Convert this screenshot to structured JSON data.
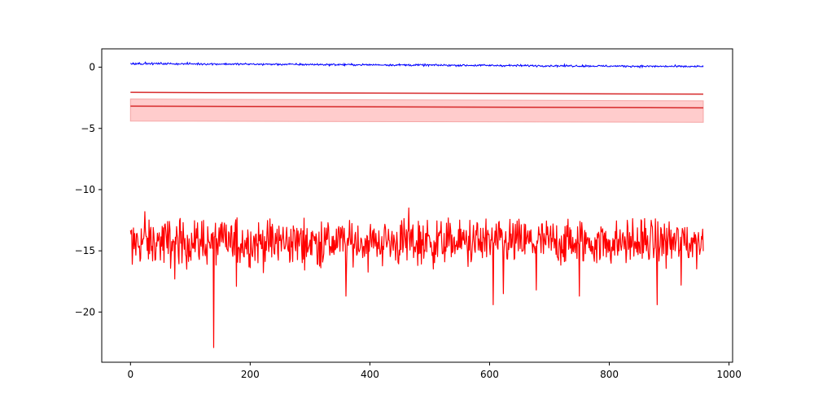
{
  "chart_data": {
    "type": "line",
    "title": "",
    "xlabel": "",
    "ylabel": "",
    "xlim": [
      -48,
      1006
    ],
    "ylim": [
      -24.1,
      1.5
    ],
    "grid": false,
    "legend": "none",
    "x_ticks": [
      0,
      200,
      400,
      600,
      800,
      1000
    ],
    "x_tick_labels": [
      "0",
      "200",
      "400",
      "600",
      "800",
      "1000"
    ],
    "y_ticks": [
      0,
      -5,
      -10,
      -15,
      -20
    ],
    "y_tick_labels": [
      "0",
      "−5",
      "−10",
      "−15",
      "−20"
    ],
    "n_points": 958,
    "colors": {
      "blue": "#0000ff",
      "red": "#ff0000",
      "dark_red": "#d62728",
      "band_fill": "#ffcccc"
    },
    "series": [
      {
        "key": "blue_line",
        "color": "#0000ff",
        "trend": {
          "x": [
            0,
            957
          ],
          "y": [
            0.3,
            0.05
          ]
        },
        "noise_amplitude": 0.08
      },
      {
        "key": "upper_line",
        "color": "#d62728",
        "x": [
          0,
          957
        ],
        "y": [
          -2.05,
          -2.2
        ]
      },
      {
        "key": "band_center_line",
        "color": "#d62728",
        "x": [
          0,
          957
        ],
        "y": [
          -3.18,
          -3.32
        ]
      },
      {
        "key": "band",
        "color": "#ffcccc",
        "x": [
          0,
          957
        ],
        "upper": [
          -2.6,
          -2.75
        ],
        "lower": [
          -4.4,
          -4.5
        ]
      },
      {
        "key": "noisy_red",
        "color": "#ff0000",
        "mean": -14.3,
        "spread": [
          -16.5,
          -12.3
        ],
        "spikes": [
          {
            "x": 3,
            "y": -16.1
          },
          {
            "x": 24,
            "y": -11.8
          },
          {
            "x": 74,
            "y": -17.3
          },
          {
            "x": 139,
            "y": -22.9
          },
          {
            "x": 177,
            "y": -17.9
          },
          {
            "x": 360,
            "y": -18.7
          },
          {
            "x": 465,
            "y": -11.5
          },
          {
            "x": 606,
            "y": -19.4
          },
          {
            "x": 623,
            "y": -18.5
          },
          {
            "x": 678,
            "y": -18.2
          },
          {
            "x": 750,
            "y": -18.7
          },
          {
            "x": 880,
            "y": -19.4
          },
          {
            "x": 920,
            "y": -17.8
          }
        ]
      }
    ]
  }
}
